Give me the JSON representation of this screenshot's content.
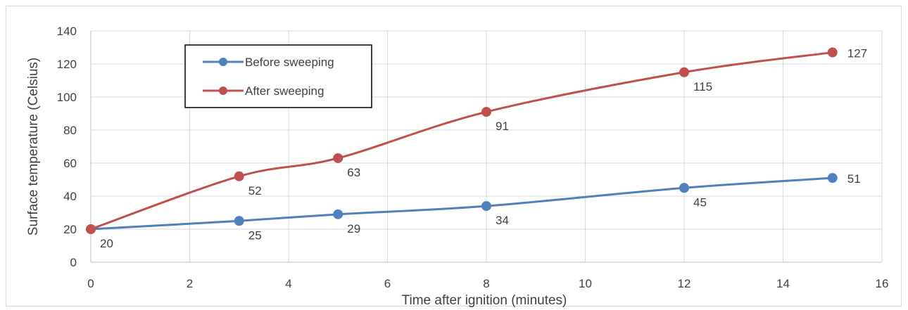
{
  "chart_data": {
    "type": "line",
    "title": "",
    "xlabel": "Time after ignition (minutes)",
    "ylabel": "Surface temperature (Celsius)",
    "xlim": [
      0,
      16
    ],
    "ylim": [
      0,
      140
    ],
    "x_ticks": [
      0,
      2,
      4,
      6,
      8,
      10,
      12,
      14,
      16
    ],
    "y_ticks": [
      0,
      20,
      40,
      60,
      80,
      100,
      120,
      140
    ],
    "grid": true,
    "smooth": true,
    "legend_position": "top-left",
    "series": [
      {
        "name": "Before sweeping",
        "color": "#4f81bd",
        "x": [
          0,
          3,
          5,
          8,
          12,
          15
        ],
        "values": [
          20,
          25,
          29,
          34,
          45,
          51
        ],
        "labels": [
          "20",
          "25",
          "29",
          "34",
          "45",
          "51"
        ]
      },
      {
        "name": "After sweeping",
        "color": "#c0504d",
        "x": [
          0,
          3,
          5,
          8,
          12,
          15
        ],
        "values": [
          20,
          52,
          63,
          91,
          115,
          127
        ],
        "labels": [
          "",
          "52",
          "63",
          "91",
          "115",
          "127"
        ]
      }
    ]
  }
}
